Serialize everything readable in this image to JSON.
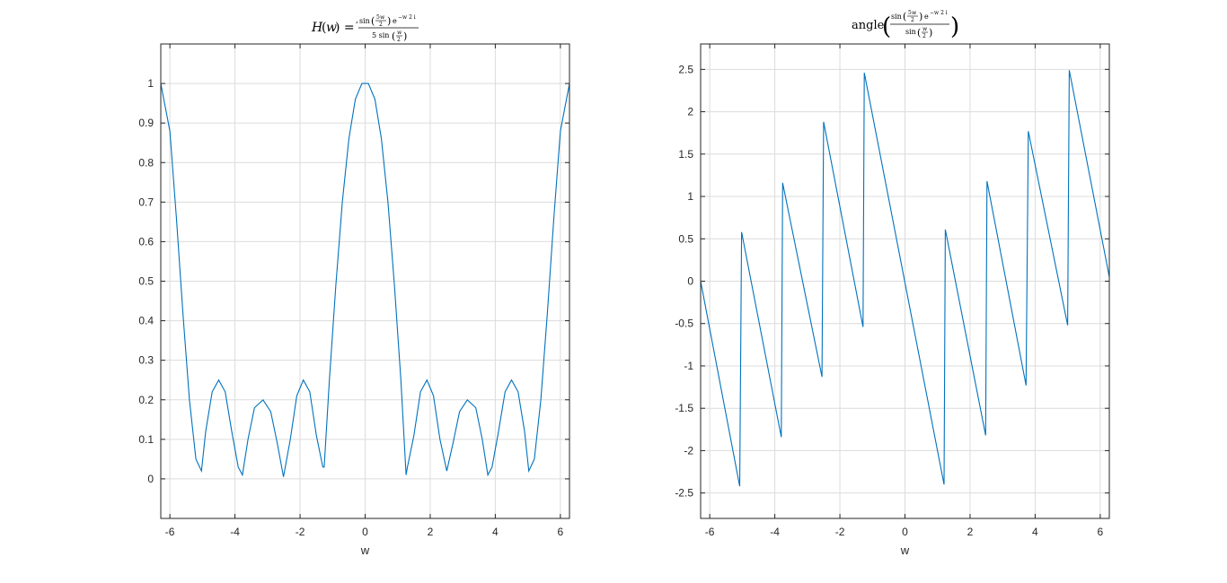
{
  "chart_data": [
    {
      "type": "line",
      "title": "H(w) = sin(5w/2) e^(-w 2 i) / (5 sin(w/2))",
      "xlabel": "w",
      "ylabel": "",
      "xlim": [
        -6.28,
        6.28
      ],
      "ylim": [
        -0.1,
        1.1
      ],
      "grid": true,
      "xticks": [
        -6,
        -4,
        -2,
        0,
        2,
        4,
        6
      ],
      "xtick_labels": [
        "-6",
        "-4",
        "-2",
        "0",
        "2",
        "4",
        "6"
      ],
      "yticks": [
        0,
        0.1,
        0.2,
        0.3,
        0.4,
        0.5,
        0.6,
        0.7,
        0.8,
        0.9,
        1
      ],
      "ytick_labels": [
        "0",
        "0.1",
        "0.2",
        "0.3",
        "0.4",
        "0.5",
        "0.6",
        "0.7",
        "0.8",
        "0.9",
        "1"
      ],
      "series": [
        {
          "color": "#0072BD",
          "x": [
            -6.28,
            -6.0,
            -5.8,
            -5.6,
            -5.4,
            -5.2,
            -5.03,
            -4.9,
            -4.7,
            -4.5,
            -4.3,
            -4.1,
            -3.9,
            -3.77,
            -3.6,
            -3.4,
            -3.14,
            -2.9,
            -2.7,
            -2.51,
            -2.3,
            -2.1,
            -1.9,
            -1.7,
            -1.5,
            -1.3,
            -1.26,
            -1.1,
            -0.9,
            -0.7,
            -0.5,
            -0.3,
            -0.1,
            0.0,
            0.1,
            0.3,
            0.5,
            0.7,
            0.9,
            1.1,
            1.26,
            1.3,
            1.5,
            1.7,
            1.9,
            2.1,
            2.3,
            2.51,
            2.7,
            2.9,
            3.14,
            3.4,
            3.6,
            3.77,
            3.9,
            4.1,
            4.3,
            4.5,
            4.7,
            4.9,
            5.03,
            5.2,
            5.4,
            5.6,
            5.8,
            6.0,
            6.28
          ],
          "y": [
            1.0,
            0.88,
            0.66,
            0.42,
            0.2,
            0.05,
            0.02,
            0.12,
            0.22,
            0.25,
            0.22,
            0.12,
            0.03,
            0.01,
            0.1,
            0.18,
            0.2,
            0.17,
            0.09,
            0.005,
            0.1,
            0.21,
            0.25,
            0.22,
            0.11,
            0.03,
            0.03,
            0.25,
            0.49,
            0.7,
            0.86,
            0.96,
            1.0,
            1.0,
            1.0,
            0.96,
            0.86,
            0.7,
            0.49,
            0.25,
            0.01,
            0.03,
            0.11,
            0.22,
            0.25,
            0.21,
            0.1,
            0.02,
            0.09,
            0.17,
            0.2,
            0.18,
            0.1,
            0.01,
            0.03,
            0.12,
            0.22,
            0.25,
            0.22,
            0.12,
            0.02,
            0.05,
            0.2,
            0.42,
            0.66,
            0.88,
            1.0
          ]
        }
      ]
    },
    {
      "type": "line",
      "title": "angle( sin(5w/2) e^(-w 2 i) / sin(w/2) )",
      "xlabel": "w",
      "ylabel": "",
      "xlim": [
        -6.28,
        6.28
      ],
      "ylim": [
        -2.8,
        2.8
      ],
      "grid": true,
      "xticks": [
        -6,
        -4,
        -2,
        0,
        2,
        4,
        6
      ],
      "xtick_labels": [
        "-6",
        "-4",
        "-2",
        "0",
        "2",
        "4",
        "6"
      ],
      "yticks": [
        -2.5,
        -2,
        -1.5,
        -1,
        -0.5,
        0,
        0.5,
        1,
        1.5,
        2,
        2.5
      ],
      "ytick_labels": [
        "-2.5",
        "-2",
        "-1.5",
        "-1",
        "-0.5",
        "0",
        "0.5",
        "1",
        "1.5",
        "2",
        "2.5"
      ],
      "series": [
        {
          "color": "#0072BD",
          "x": [
            -6.28,
            -5.08,
            -5.02,
            -3.8,
            -3.76,
            -2.55,
            -2.5,
            -1.29,
            -1.25,
            1.2,
            1.24,
            2.48,
            2.52,
            3.72,
            3.79,
            5.0,
            5.05,
            6.28
          ],
          "y": [
            0.0,
            -2.42,
            0.58,
            -1.84,
            1.16,
            -1.13,
            1.88,
            -0.54,
            2.46,
            -2.4,
            0.61,
            -1.82,
            1.18,
            -1.23,
            1.77,
            -0.52,
            2.49,
            0.05
          ]
        }
      ]
    }
  ]
}
